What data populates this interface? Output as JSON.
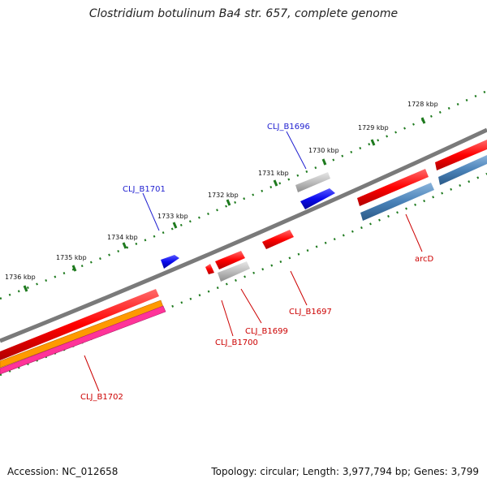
{
  "title": "Clostridium botulinum Ba4 str. 657, complete genome",
  "footer": {
    "accession": "Accession: NC_012658",
    "summary": "Topology: circular; Length: 3,977,794 bp; Genes: 3,799"
  },
  "ticks": [
    "1728 kbp",
    "1729 kbp",
    "1730 kbp",
    "1731 kbp",
    "1732 kbp",
    "1733 kbp",
    "1734 kbp",
    "1735 kbp",
    "1736 kbp"
  ],
  "genes": [
    {
      "label": "CLJ_B1696",
      "color": "#1f1fd0"
    },
    {
      "label": "CLJ_B1701",
      "color": "#1f1fd0"
    },
    {
      "label": "arcD",
      "color": "#cc0000"
    },
    {
      "label": "CLJ_B1697",
      "color": "#cc0000"
    },
    {
      "label": "CLJ_B1699",
      "color": "#cc0000"
    },
    {
      "label": "CLJ_B1700",
      "color": "#cc0000"
    },
    {
      "label": "CLJ_B1702",
      "color": "#cc0000"
    }
  ],
  "colors": {
    "backbone": "#7a7a7a",
    "tick": "#1e7a1e",
    "red_feature": "#ff0000",
    "blue_feature": "#0a0aee",
    "grey_feature": "#b8b8b8",
    "steel_feature": "#4a82b8",
    "orange_feature": "#ff9900",
    "pink_feature": "#ff3399"
  }
}
